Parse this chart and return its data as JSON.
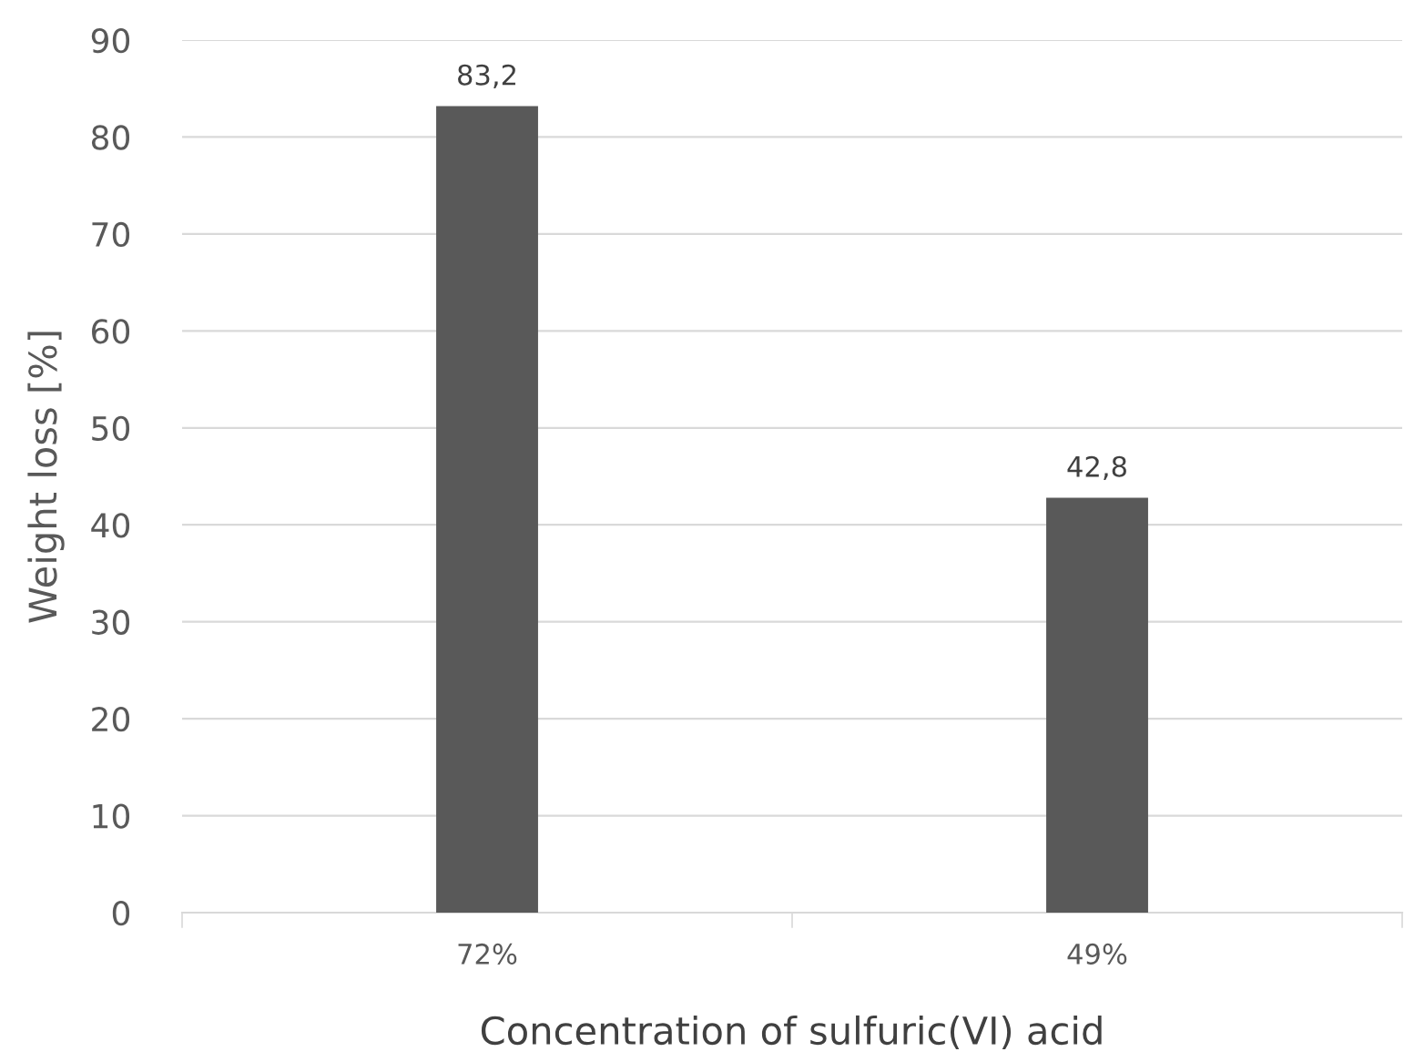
{
  "chart_data": {
    "type": "bar",
    "xlabel": "Concentration of sulfuric(VI) acid",
    "ylabel": "Weight loss [%]",
    "categories": [
      "72%",
      "49%"
    ],
    "values": [
      83.2,
      42.8
    ],
    "value_labels": [
      "83,2",
      "42,8"
    ],
    "color": "#595959",
    "ylim": [
      0,
      90
    ],
    "yticks": [
      0,
      10,
      20,
      30,
      40,
      50,
      60,
      70,
      80,
      90
    ],
    "grid": "y",
    "legend": false
  }
}
